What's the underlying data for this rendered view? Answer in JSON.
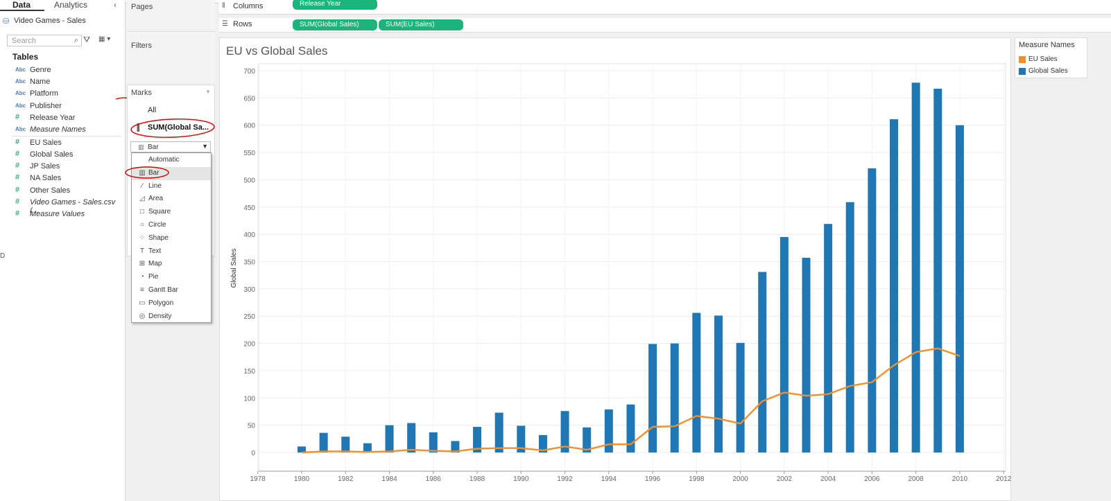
{
  "tabs": {
    "data": "Data",
    "analytics": "Analytics"
  },
  "collapse_icon": "‹",
  "datasource": "Video Games - Sales",
  "search_placeholder": "Search",
  "tables_heading": "Tables",
  "dimensions": [
    {
      "type": "Abc",
      "name": "Genre"
    },
    {
      "type": "Abc",
      "name": "Name"
    },
    {
      "type": "Abc",
      "name": "Platform"
    },
    {
      "type": "Abc",
      "name": "Publisher"
    },
    {
      "type": "#",
      "name": "Release Year"
    },
    {
      "type": "Abc",
      "name": "Measure Names"
    }
  ],
  "measures": [
    {
      "type": "#",
      "name": "EU Sales"
    },
    {
      "type": "#",
      "name": "Global Sales"
    },
    {
      "type": "#",
      "name": "JP Sales"
    },
    {
      "type": "#",
      "name": "NA Sales"
    },
    {
      "type": "#",
      "name": "Other Sales"
    },
    {
      "type": "#",
      "name": "Video Games - Sales.csv (..."
    },
    {
      "type": "#",
      "name": "Measure Values"
    }
  ],
  "pages_label": "Pages",
  "filters_label": "Filters",
  "marks": {
    "heading": "Marks",
    "all": "All",
    "sum_global": "SUM(Global Sa...",
    "type_selected": "Bar",
    "menu": [
      {
        "icon": "",
        "label": "Automatic"
      },
      {
        "icon": "▥",
        "label": "Bar"
      },
      {
        "icon": "∕",
        "label": "Line"
      },
      {
        "icon": "◿",
        "label": "Area"
      },
      {
        "icon": "□",
        "label": "Square"
      },
      {
        "icon": "○",
        "label": "Circle"
      },
      {
        "icon": "⁘",
        "label": "Shape"
      },
      {
        "icon": "T",
        "label": "Text"
      },
      {
        "icon": "⊞",
        "label": "Map"
      },
      {
        "icon": "◔",
        "label": "Pie"
      },
      {
        "icon": "≡",
        "label": "Gantt Bar"
      },
      {
        "icon": "▭",
        "label": "Polygon"
      },
      {
        "icon": "◎",
        "label": "Density"
      }
    ]
  },
  "columns_shelf": {
    "label": "Columns",
    "pills": [
      "Release Year"
    ]
  },
  "rows_shelf": {
    "label": "Rows",
    "pills": [
      "SUM(Global Sales)",
      "SUM(EU Sales)"
    ]
  },
  "viz_title": "EU vs Global Sales",
  "legend": {
    "title": "Measure Names",
    "items": [
      {
        "name": "EU Sales",
        "color": "#f28e2b"
      },
      {
        "name": "Global Sales",
        "color": "#1f77b4"
      }
    ]
  },
  "colors": {
    "pill": "#1db37c",
    "bar": "#1f77b4",
    "line": "#f28e2b",
    "annotation": "#d00000"
  },
  "chart_data": {
    "type": "bar",
    "title": "EU vs Global Sales",
    "ylabel": "Global Sales",
    "xlabel": "",
    "ylim": [
      0,
      700
    ],
    "xlim": [
      1978,
      2012
    ],
    "yticks": [
      0,
      50,
      100,
      150,
      200,
      250,
      300,
      350,
      400,
      450,
      500,
      550,
      600,
      650,
      700
    ],
    "xticks": [
      1978,
      1980,
      1982,
      1984,
      1986,
      1988,
      1990,
      1992,
      1994,
      1996,
      1998,
      2000,
      2002,
      2004,
      2006,
      2008,
      2010,
      2012
    ],
    "x": [
      1980,
      1981,
      1982,
      1983,
      1984,
      1985,
      1986,
      1987,
      1988,
      1989,
      1990,
      1991,
      1992,
      1993,
      1994,
      1995,
      1996,
      1997,
      1998,
      1999,
      2000,
      2001,
      2002,
      2003,
      2004,
      2005,
      2006,
      2007,
      2008,
      2009,
      2010
    ],
    "series": [
      {
        "name": "Global Sales",
        "kind": "bar",
        "values": [
          11,
          36,
          29,
          17,
          50,
          54,
          37,
          21,
          47,
          73,
          49,
          32,
          76,
          46,
          79,
          88,
          199,
          200,
          256,
          251,
          201,
          331,
          395,
          357,
          419,
          459,
          521,
          611,
          678,
          667,
          600
        ]
      },
      {
        "name": "EU Sales",
        "kind": "line",
        "values": [
          0,
          2,
          2,
          1,
          2,
          5,
          3,
          2,
          7,
          8,
          8,
          4,
          11,
          5,
          15,
          15,
          47,
          48,
          67,
          62,
          53,
          94,
          110,
          104,
          107,
          122,
          129,
          160,
          184,
          191,
          177
        ]
      }
    ],
    "grid": true,
    "legend": "right"
  }
}
